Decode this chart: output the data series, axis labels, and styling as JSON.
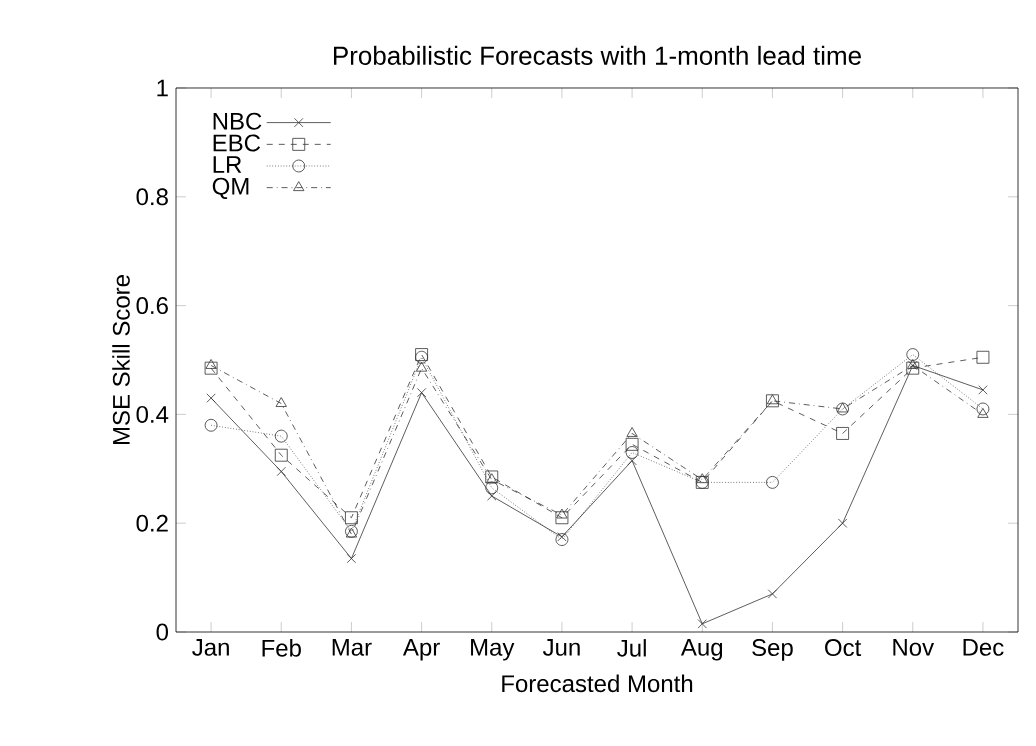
{
  "chart_data": {
    "type": "line",
    "title": "Probabilistic Forecasts with 1-month lead time",
    "xlabel": "Forecasted Month",
    "ylabel": "MSE Skill Score",
    "categories": [
      "Jan",
      "Feb",
      "Mar",
      "Apr",
      "May",
      "Jun",
      "Jul",
      "Aug",
      "Sep",
      "Oct",
      "Nov",
      "Dec"
    ],
    "ylim": [
      0,
      1
    ],
    "yticks": [
      0,
      0.2,
      0.4,
      0.6,
      0.8,
      1
    ],
    "grid": false,
    "legend": "top left",
    "series": [
      {
        "name": "NBC",
        "color": "#333333",
        "marker": "cross",
        "line_style": "solid",
        "values": [
          0.43,
          0.295,
          0.135,
          0.44,
          0.25,
          0.175,
          0.315,
          0.015,
          0.07,
          0.2,
          0.49,
          0.445
        ]
      },
      {
        "name": "EBC",
        "color": "#333333",
        "marker": "square",
        "line_style": "dashed",
        "values": [
          0.485,
          0.325,
          0.21,
          0.51,
          0.285,
          0.21,
          0.345,
          0.275,
          0.425,
          0.365,
          0.485,
          0.505
        ]
      },
      {
        "name": "LR",
        "color": "#333333",
        "marker": "circle",
        "line_style": "dotted",
        "values": [
          0.38,
          0.36,
          0.185,
          0.505,
          0.265,
          0.17,
          0.33,
          0.275,
          0.275,
          0.41,
          0.51,
          0.41
        ]
      },
      {
        "name": "QM",
        "color": "#333333",
        "marker": "triangle",
        "line_style": "dashdotted",
        "values": [
          0.49,
          0.42,
          0.18,
          0.485,
          0.28,
          0.215,
          0.365,
          0.28,
          0.425,
          0.41,
          0.49,
          0.4
        ]
      }
    ]
  }
}
